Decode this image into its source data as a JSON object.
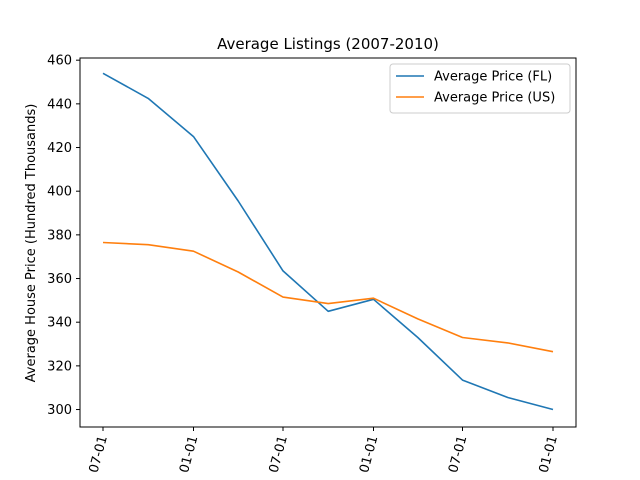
{
  "chart_data": {
    "type": "line",
    "title": "Average Listings (2007-2010)",
    "xlabel": "",
    "ylabel": "Average House Price (Hundred Thousands)",
    "x": [
      "2007-07-01",
      "2007-10-01",
      "2008-01-01",
      "2008-04-01",
      "2008-07-01",
      "2008-10-01",
      "2009-01-01",
      "2009-04-01",
      "2009-07-01",
      "2009-10-01",
      "2010-01-01"
    ],
    "x_tick_labels": [
      "07-01",
      "01-01",
      "07-01",
      "01-01",
      "07-01",
      "01-01"
    ],
    "x_tick_values": [
      "2007-07-01",
      "2008-01-01",
      "2008-07-01",
      "2009-01-01",
      "2009-07-01",
      "2010-01-01"
    ],
    "ylim": [
      292,
      461
    ],
    "y_ticks": [
      300,
      320,
      340,
      360,
      380,
      400,
      420,
      440,
      460
    ],
    "grid": false,
    "legend_position": "top-right",
    "series": [
      {
        "name": "Average Price (FL)",
        "color": "#1f77b4",
        "values": [
          454,
          442.5,
          425,
          395.5,
          363.5,
          345,
          350.5,
          333,
          313.5,
          305.5,
          300
        ]
      },
      {
        "name": "Average Price (US)",
        "color": "#ff7f0e",
        "values": [
          376.5,
          375.5,
          372.5,
          363,
          351.5,
          348.5,
          351,
          341.5,
          333,
          330.5,
          326.5
        ]
      }
    ]
  }
}
